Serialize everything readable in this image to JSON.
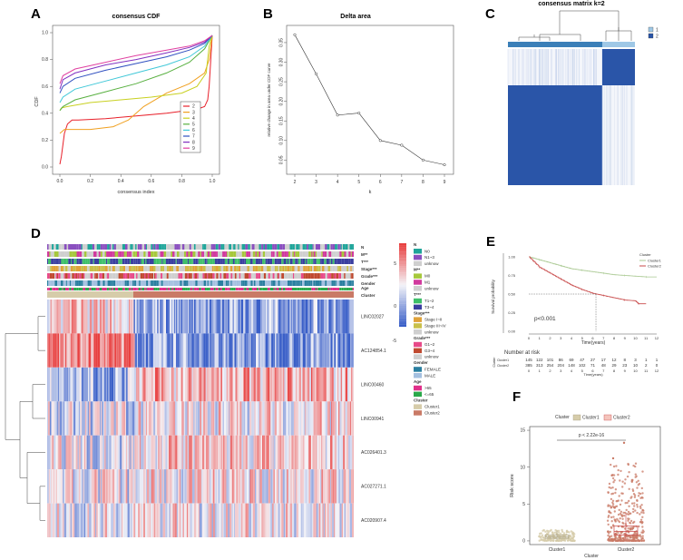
{
  "colors": {
    "heat_red": "#e84040",
    "heat_blue": "#3a5fc8",
    "heat_white": "#f4f4f8",
    "cluster1": "#d6ccaa",
    "cluster2": "#c97a66",
    "km1": "#a8c890",
    "km2": "#c84a4a",
    "consensus_blue": "#2a55a8",
    "consensus_light": "#9fc8e6"
  },
  "chart_data": [
    {
      "panel": "A",
      "type": "line",
      "title": "consensus CDF",
      "xlabel": "consensus index",
      "ylabel": "CDF",
      "xlim": [
        0,
        1
      ],
      "ylim": [
        0,
        1
      ],
      "xticks": [
        "0.0",
        "0.2",
        "0.4",
        "0.6",
        "0.8",
        "1.0"
      ],
      "yticks": [
        "0.0",
        "0.2",
        "0.4",
        "0.6",
        "0.8",
        "1.0"
      ],
      "legend": [
        "2",
        "3",
        "4",
        "5",
        "6",
        "7",
        "8",
        "9"
      ],
      "series": [
        {
          "name": "2",
          "color": "#e8202a",
          "x": [
            0.0,
            0.01,
            0.03,
            0.05,
            0.08,
            0.12,
            0.3,
            0.5,
            0.7,
            0.9,
            0.95,
            0.97,
            0.98,
            1.0
          ],
          "y": [
            0.02,
            0.08,
            0.25,
            0.32,
            0.35,
            0.35,
            0.36,
            0.38,
            0.4,
            0.43,
            0.45,
            0.5,
            0.6,
            0.98
          ]
        },
        {
          "name": "3",
          "color": "#f0a020",
          "x": [
            0.0,
            0.03,
            0.08,
            0.2,
            0.35,
            0.45,
            0.55,
            0.7,
            0.85,
            0.95,
            0.98,
            1.0
          ],
          "y": [
            0.25,
            0.28,
            0.28,
            0.28,
            0.3,
            0.35,
            0.45,
            0.55,
            0.62,
            0.7,
            0.8,
            0.98
          ]
        },
        {
          "name": "4",
          "color": "#c8d020",
          "x": [
            0.0,
            0.01,
            0.05,
            0.2,
            0.4,
            0.6,
            0.8,
            0.9,
            0.96,
            0.98,
            1.0
          ],
          "y": [
            0.42,
            0.44,
            0.45,
            0.48,
            0.5,
            0.52,
            0.55,
            0.6,
            0.7,
            0.9,
            0.98
          ]
        },
        {
          "name": "5",
          "color": "#58b040",
          "x": [
            0.0,
            0.02,
            0.1,
            0.3,
            0.5,
            0.7,
            0.85,
            0.95,
            1.0
          ],
          "y": [
            0.42,
            0.45,
            0.5,
            0.56,
            0.62,
            0.7,
            0.78,
            0.88,
            0.98
          ]
        },
        {
          "name": "6",
          "color": "#40c8d8",
          "x": [
            0.0,
            0.02,
            0.1,
            0.3,
            0.5,
            0.7,
            0.85,
            0.95,
            1.0
          ],
          "y": [
            0.48,
            0.52,
            0.58,
            0.64,
            0.7,
            0.76,
            0.82,
            0.9,
            0.98
          ]
        },
        {
          "name": "7",
          "color": "#3050c0",
          "x": [
            0.0,
            0.02,
            0.1,
            0.3,
            0.5,
            0.7,
            0.85,
            0.95,
            1.0
          ],
          "y": [
            0.55,
            0.6,
            0.66,
            0.72,
            0.77,
            0.82,
            0.87,
            0.92,
            0.98
          ]
        },
        {
          "name": "8",
          "color": "#8030c0",
          "x": [
            0.0,
            0.02,
            0.1,
            0.3,
            0.5,
            0.7,
            0.85,
            0.95,
            1.0
          ],
          "y": [
            0.58,
            0.65,
            0.7,
            0.76,
            0.8,
            0.85,
            0.89,
            0.93,
            0.98
          ]
        },
        {
          "name": "9",
          "color": "#e040a0",
          "x": [
            0.0,
            0.02,
            0.1,
            0.3,
            0.5,
            0.7,
            0.85,
            0.95,
            1.0
          ],
          "y": [
            0.62,
            0.68,
            0.73,
            0.78,
            0.83,
            0.87,
            0.9,
            0.94,
            0.98
          ]
        }
      ]
    },
    {
      "panel": "B",
      "type": "line",
      "title": "Delta area",
      "xlabel": "k",
      "ylabel": "relative change in area under CDF curve",
      "x": [
        2,
        3,
        4,
        5,
        6,
        7,
        8,
        9
      ],
      "values": [
        0.37,
        0.27,
        0.165,
        0.17,
        0.1,
        0.088,
        0.05,
        0.038
      ],
      "xlim": [
        2,
        9
      ],
      "ylim": [
        0.03,
        0.38
      ],
      "yticks": [
        "0.05",
        "0.10",
        "0.15",
        "0.20",
        "0.25",
        "0.30",
        "0.35"
      ]
    },
    {
      "panel": "C",
      "type": "heatmap",
      "title": "consensus matrix k=2",
      "legend": [
        "1",
        "2"
      ],
      "cluster_fractions": [
        0.72,
        0.28
      ]
    },
    {
      "panel": "D",
      "type": "heatmap",
      "annotation_rows": [
        "N",
        "M**",
        "T***",
        "Stage***",
        "Grade***",
        "Gender",
        "Age",
        "Cluster"
      ],
      "genes": [
        "LINC02027",
        "AC124854.1",
        "LINC00460",
        "LINC00941",
        "AC026401.3",
        "AC027271.1",
        "AC020907.4"
      ],
      "colorbar_ticks": [
        "5",
        "0",
        "-5"
      ],
      "legend_groups": [
        {
          "title": "N",
          "items": [
            {
              "label": "N0",
              "color": "#1fa59a"
            },
            {
              "label": "N1~3",
              "color": "#8a4fbf"
            },
            {
              "label": "unknow",
              "color": "#cfcfcf"
            }
          ]
        },
        {
          "title": "M**",
          "items": [
            {
              "label": "M0",
              "color": "#a6c83c"
            },
            {
              "label": "M1",
              "color": "#d13a9e"
            },
            {
              "label": "unknow",
              "color": "#cfcfcf"
            }
          ]
        },
        {
          "title": "T***",
          "items": [
            {
              "label": "T1~2",
              "color": "#3fbf6a"
            },
            {
              "label": "T3~4",
              "color": "#3b3fa0"
            }
          ]
        },
        {
          "title": "Stage***",
          "items": [
            {
              "label": "Stage I~II",
              "color": "#e0a23a"
            },
            {
              "label": "Stage III~IV",
              "color": "#c9c04a"
            },
            {
              "label": "unknow",
              "color": "#cfcfcf"
            }
          ]
        },
        {
          "title": "Grade***",
          "items": [
            {
              "label": "G1~2",
              "color": "#e84a8a"
            },
            {
              "label": "G3~4",
              "color": "#c04a30"
            },
            {
              "label": "unknow",
              "color": "#cfcfcf"
            }
          ]
        },
        {
          "title": "Gender",
          "items": [
            {
              "label": "FEMALE",
              "color": "#2a7fa0"
            },
            {
              "label": "MALE",
              "color": "#a4c0e0"
            }
          ]
        },
        {
          "title": "Age",
          "items": [
            {
              "label": ">65",
              "color": "#e0308a"
            },
            {
              "label": "<=65",
              "color": "#2aa84a"
            }
          ]
        },
        {
          "title": "Cluster",
          "items": [
            {
              "label": "Cluster1",
              "color": "#d6ccaa"
            },
            {
              "label": "Cluster2",
              "color": "#c97a66"
            }
          ]
        }
      ]
    },
    {
      "panel": "E",
      "type": "line",
      "xlabel": "Time(years)",
      "ylabel": "Survival probability",
      "pvalue": "p<0.001",
      "legend_title": "Cluster",
      "legend": [
        "Cluster1",
        "Cluster2"
      ],
      "xticks": [
        "0",
        "1",
        "2",
        "3",
        "4",
        "5",
        "6",
        "7",
        "8",
        "9",
        "10",
        "11",
        "12"
      ],
      "yticks": [
        "0.00",
        "0.25",
        "0.50",
        "0.75",
        "1.00"
      ],
      "median_time": 6.3,
      "series": [
        {
          "name": "Cluster1",
          "x": [
            0,
            1,
            2,
            3,
            4,
            5,
            6,
            7,
            8,
            9,
            10,
            11,
            12
          ],
          "values": [
            1.0,
            0.96,
            0.92,
            0.88,
            0.84,
            0.82,
            0.8,
            0.78,
            0.76,
            0.75,
            0.74,
            0.73,
            0.73
          ]
        },
        {
          "name": "Cluster2",
          "x": [
            0,
            1,
            2,
            3,
            4,
            5,
            6,
            7,
            8,
            9,
            10,
            10.3,
            11
          ],
          "values": [
            1.0,
            0.86,
            0.78,
            0.7,
            0.62,
            0.56,
            0.51,
            0.48,
            0.45,
            0.42,
            0.41,
            0.37,
            0.37
          ]
        }
      ],
      "risk_table": {
        "title": "Number at risk",
        "cluster_label": "Cluster",
        "rows": [
          {
            "name": "Cluster1",
            "values": [
              "145",
              "122",
              "101",
              "86",
              "69",
              "47",
              "27",
              "17",
              "12",
              "8",
              "3",
              "1",
              "1"
            ]
          },
          {
            "name": "Cluster2",
            "values": [
              "385",
              "313",
              "254",
              "204",
              "148",
              "102",
              "71",
              "48",
              "29",
              "23",
              "10",
              "2",
              "0"
            ]
          }
        ]
      }
    },
    {
      "panel": "F",
      "type": "scatter",
      "legend_title": "Cluster",
      "legend": [
        "Cluster1",
        "Cluster2"
      ],
      "categories": [
        "Cluster1",
        "Cluster2"
      ],
      "xlabel": "Cluster",
      "ylabel": "Risk score",
      "pvalue": "p < 2.22e-16",
      "yticks": [
        "0",
        "5",
        "10",
        "15"
      ],
      "ylim": [
        -0.5,
        15.5
      ],
      "box": [
        {
          "name": "Cluster1",
          "q1": 0.35,
          "median": 0.55,
          "q3": 0.8,
          "lower": 0.05,
          "upper": 1.4
        },
        {
          "name": "Cluster2",
          "q1": 0.8,
          "median": 1.3,
          "q3": 2.0,
          "lower": 0.1,
          "upper": 3.8
        }
      ]
    }
  ]
}
